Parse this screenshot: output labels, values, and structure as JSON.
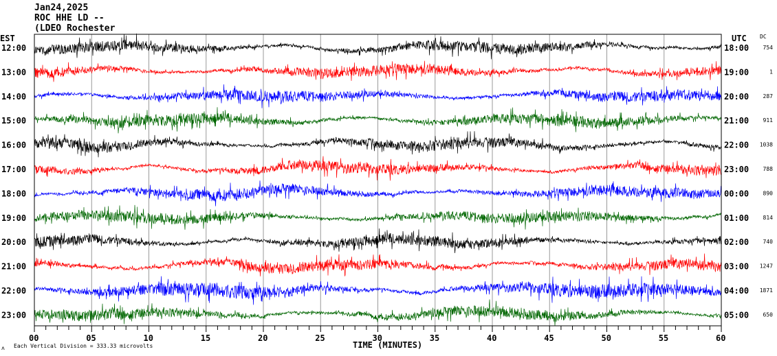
{
  "header": {
    "date": "Jan24,2025",
    "station": "ROC HHE LD --",
    "network": "(LDEO Rochester"
  },
  "footer": {
    "scale_text": "Each Vertical Division =  333.33 microvolts",
    "corner_mark": "ʌ"
  },
  "chart_data": {
    "type": "line",
    "title": "Jan24,2025 ROC HHE LD --",
    "xlabel": "TIME (MINUTES)",
    "left_axis_title": "EST",
    "right_axis_title": "UTC",
    "dc_title": "DC",
    "xlim": [
      0,
      60
    ],
    "x_ticks": [
      "00",
      "05",
      "10",
      "15",
      "20",
      "25",
      "30",
      "35",
      "40",
      "45",
      "50",
      "55",
      "60"
    ],
    "grid": "vertical every 5 minutes",
    "trace_colors": [
      "#000000",
      "#ff0000",
      "#0000ff",
      "#006600"
    ],
    "rows": [
      {
        "est": "12:00",
        "utc": "18:00",
        "dc": "754"
      },
      {
        "est": "13:00",
        "utc": "19:00",
        "dc": "1"
      },
      {
        "est": "14:00",
        "utc": "20:00",
        "dc": "287"
      },
      {
        "est": "15:00",
        "utc": "21:00",
        "dc": "911"
      },
      {
        "est": "16:00",
        "utc": "22:00",
        "dc": "1038"
      },
      {
        "est": "17:00",
        "utc": "23:00",
        "dc": "788"
      },
      {
        "est": "18:00",
        "utc": "00:00",
        "dc": "890"
      },
      {
        "est": "19:00",
        "utc": "01:00",
        "dc": "814"
      },
      {
        "est": "20:00",
        "utc": "02:00",
        "dc": "740"
      },
      {
        "est": "21:00",
        "utc": "03:00",
        "dc": "1247"
      },
      {
        "est": "22:00",
        "utc": "04:00",
        "dc": "1871"
      },
      {
        "est": "23:00",
        "utc": "05:00",
        "dc": "650"
      }
    ]
  }
}
